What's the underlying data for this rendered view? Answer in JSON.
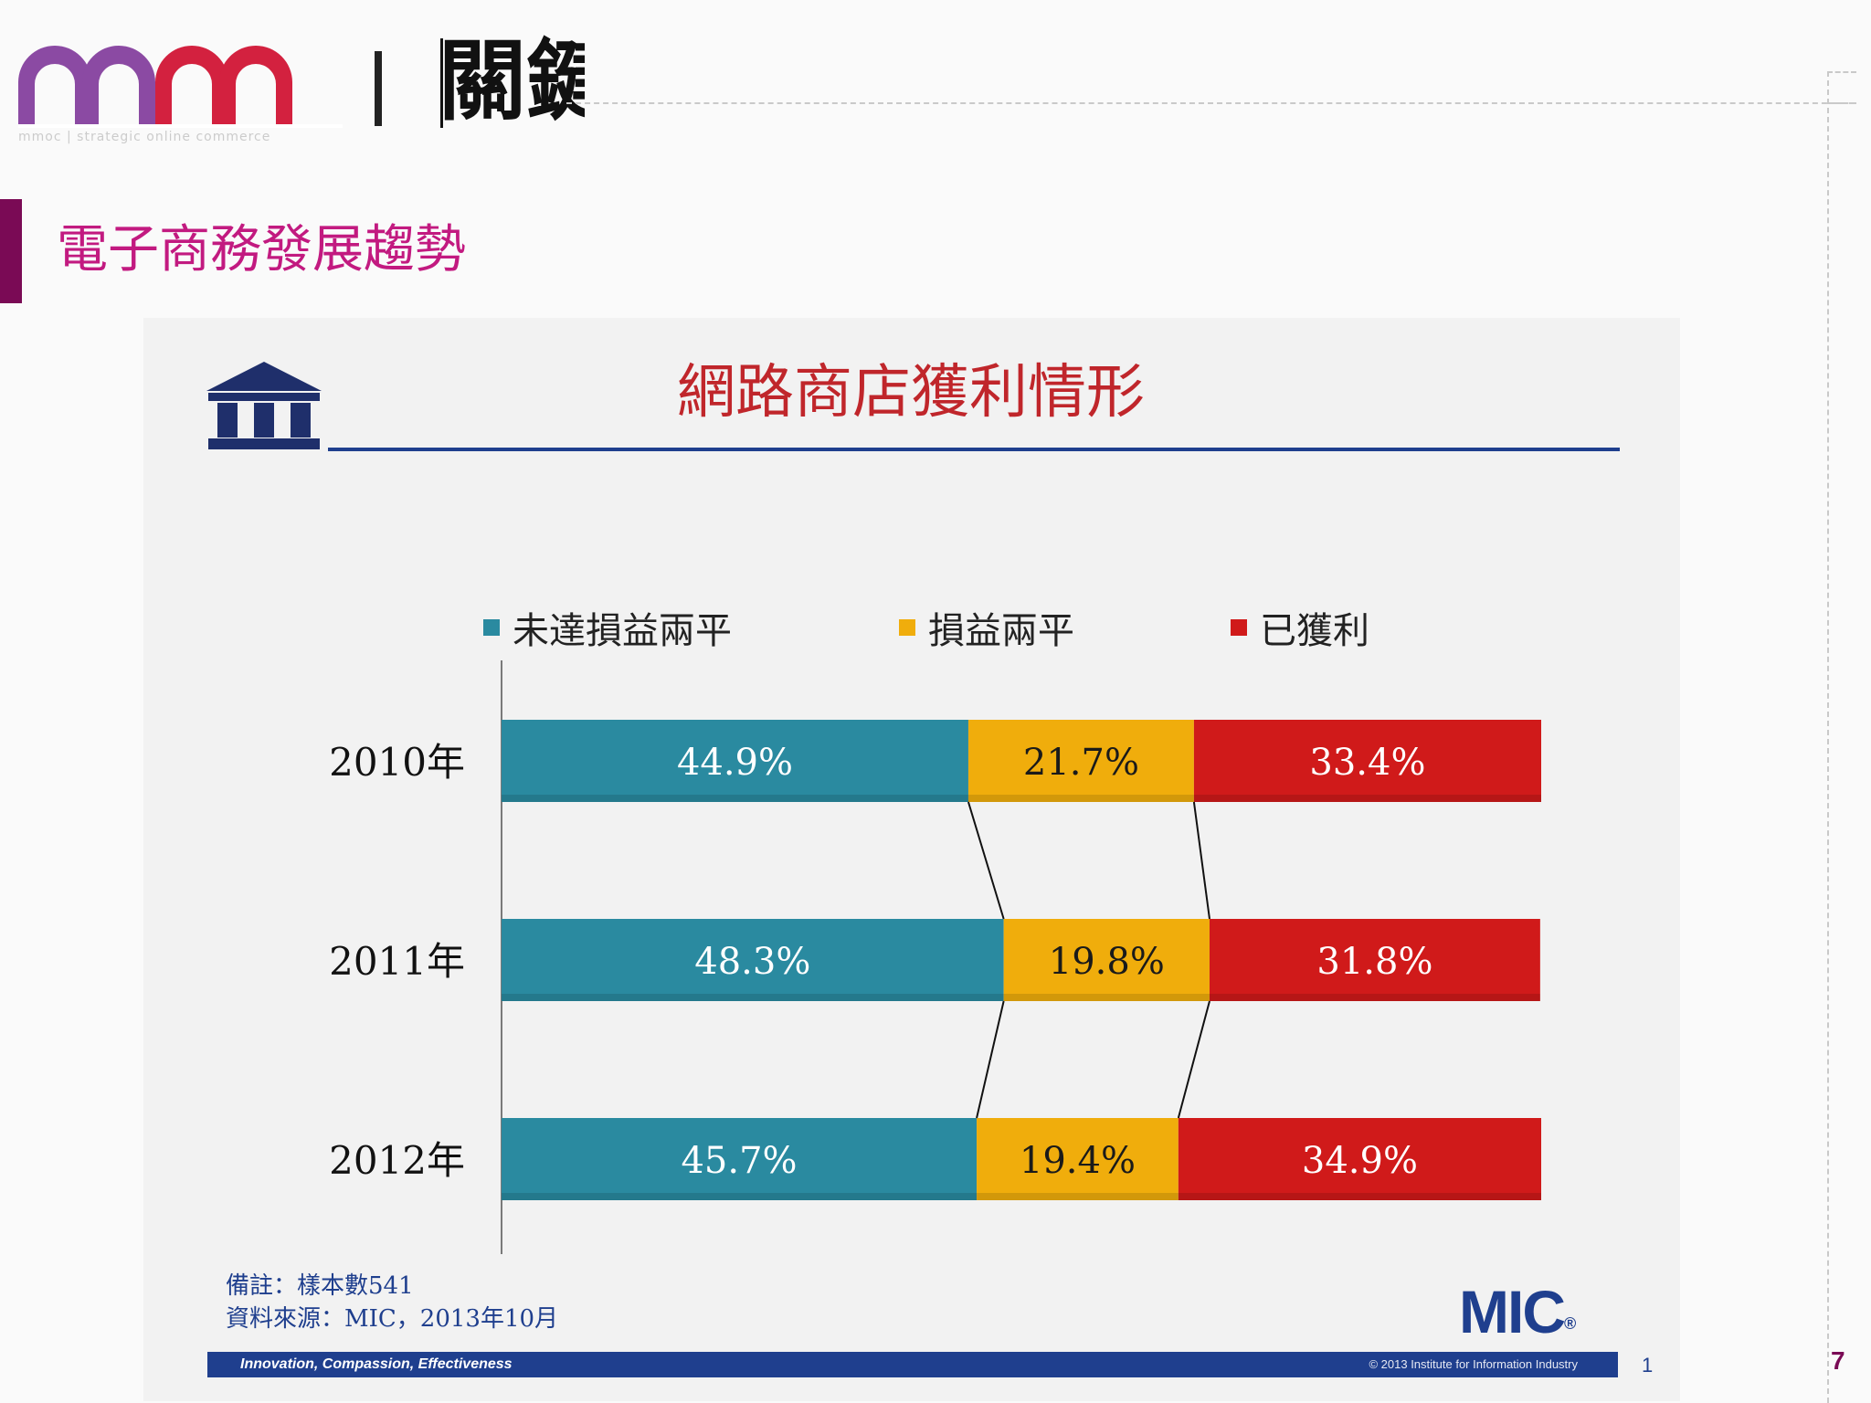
{
  "header": {
    "brand_cjk": "關鍵",
    "brand_tagline": "mmoc | strategic online commerce",
    "colors": {
      "brand_purple": "#8b4aa3",
      "brand_red": "#d3213f"
    }
  },
  "page": {
    "title": "電子商務發展趨勢",
    "number": "7",
    "accent_color": "#c21a80"
  },
  "slide": {
    "title": "網路商店獲利情形",
    "note_line1": "備註：樣本數541",
    "note_line2": "資料來源：MIC，2013年10月",
    "logo_text": "MIC",
    "logo_mark": "®",
    "footer_motto": "Innovation, Compassion, Effectiveness",
    "footer_copyright": "© 2013 Institute for Information Industry",
    "slide_number": "1",
    "colors": {
      "navy": "#1f3f8e",
      "title_red": "#c0262b"
    }
  },
  "chart_data": {
    "type": "bar",
    "orientation": "horizontal",
    "stacked": true,
    "percent_stacked": true,
    "title": "網路商店獲利情形",
    "categories": [
      "2010年",
      "2011年",
      "2012年"
    ],
    "series": [
      {
        "name": "未達損益兩平",
        "color": "#2a8aa0",
        "values": [
          44.9,
          48.3,
          45.7
        ],
        "labels": [
          "44.9%",
          "48.3%",
          "45.7%"
        ]
      },
      {
        "name": "損益兩平",
        "color": "#f0ad0c",
        "values": [
          21.7,
          19.8,
          19.4
        ],
        "labels": [
          "21.7%",
          "19.8%",
          "19.4%"
        ]
      },
      {
        "name": "已獲利",
        "color": "#d01a1a",
        "values": [
          33.4,
          31.8,
          34.9
        ],
        "labels": [
          "33.4%",
          "31.8%",
          "34.9%"
        ]
      }
    ],
    "xlim": [
      0,
      100
    ],
    "xlabel": "",
    "ylabel": "",
    "legend_position": "top",
    "series_connector_lines": true,
    "grid": false
  }
}
